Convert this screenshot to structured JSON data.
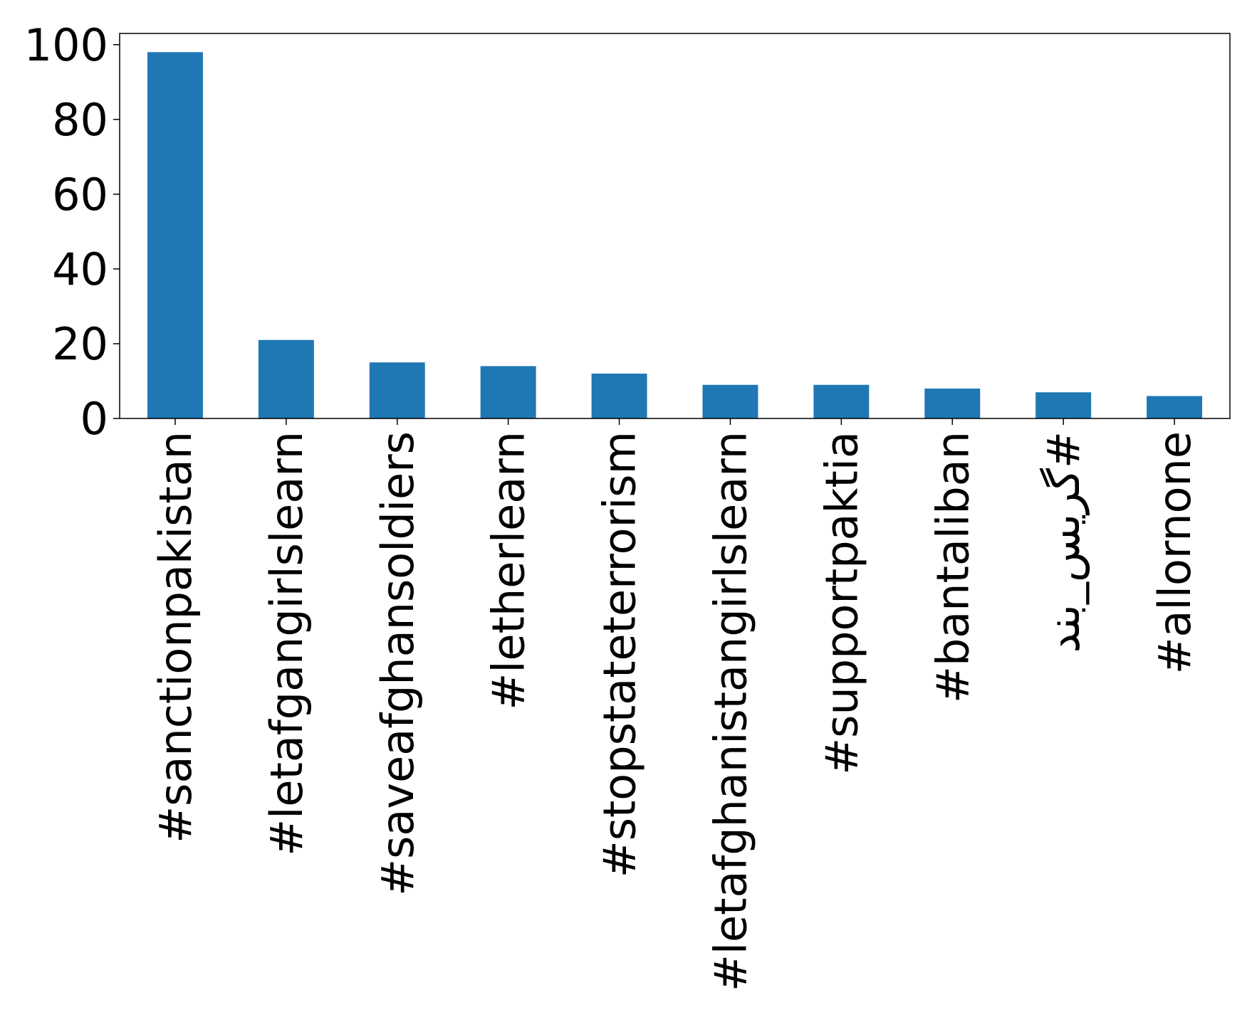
{
  "chart_data": {
    "type": "bar",
    "title": "",
    "xlabel": "",
    "ylabel": "",
    "categories": [
      "#sanctionpakistan",
      "#letafgangirlslearn",
      "#saveafghansoldiers",
      "#letherlearn",
      "#stopstateterrorism",
      "#letafghanistangirlslearn",
      "#supportpaktia",
      "#bantaliban",
      "#گریس_بند",
      "#allornone"
    ],
    "values": [
      98,
      21,
      15,
      14,
      12,
      9,
      9,
      8,
      7,
      6
    ],
    "ylim": [
      0,
      103
    ],
    "yticks": [
      "0",
      "20",
      "40",
      "60",
      "80",
      "100"
    ],
    "bar_color": "#1f77b4",
    "grid": false,
    "legend": "none"
  }
}
